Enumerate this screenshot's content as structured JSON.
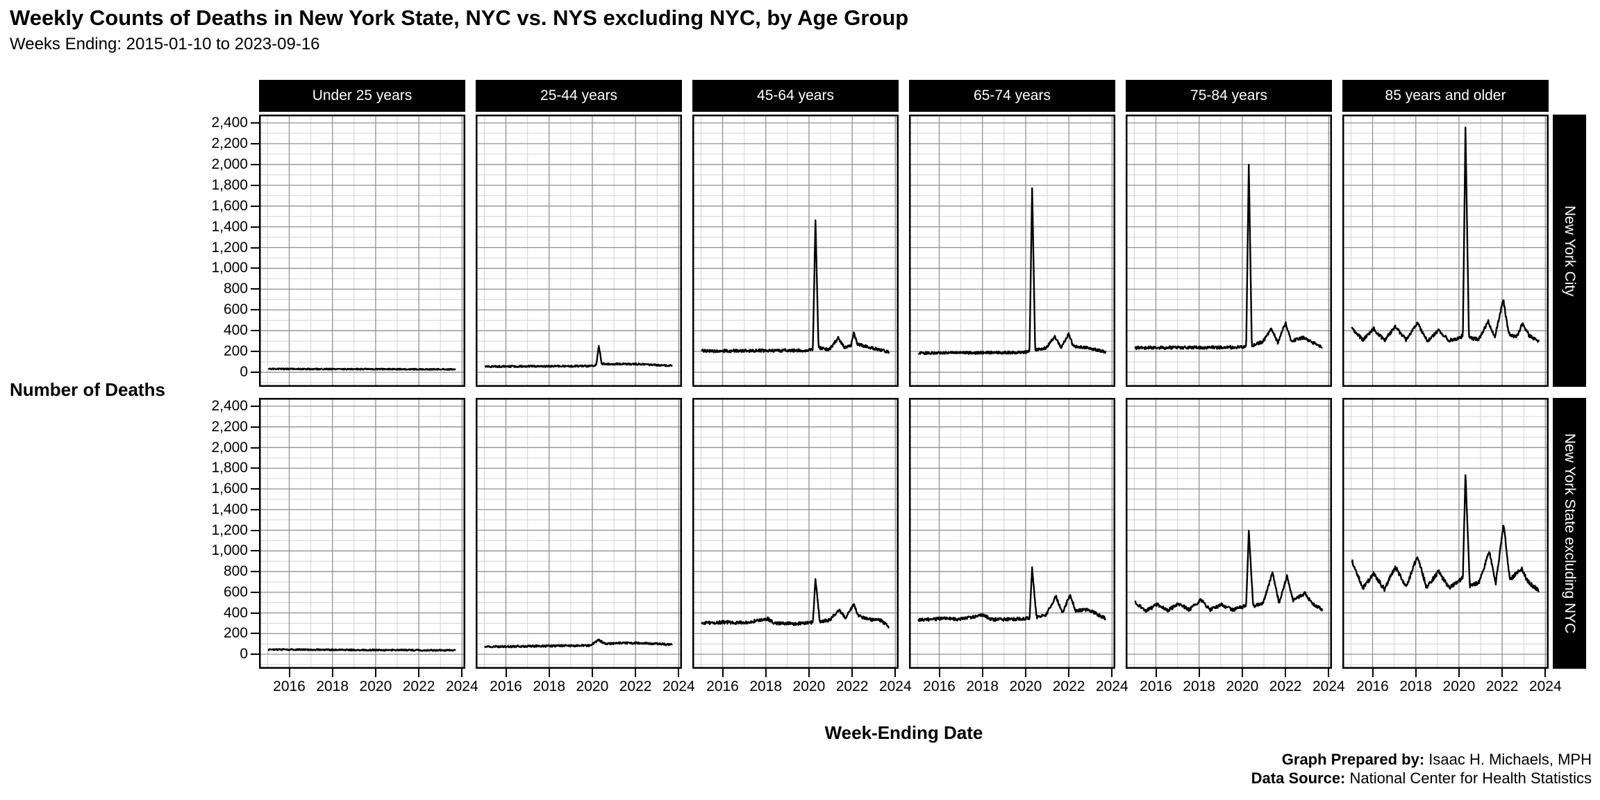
{
  "page": {
    "title": "Weekly Counts of Deaths in New York State, NYC vs. NYS excluding NYC, by Age Group",
    "subtitle": "Weeks Ending: 2015-01-10 to 2023-09-16",
    "y_axis_title": "Number of Deaths",
    "x_axis_title": "Week-Ending Date",
    "footer": {
      "prepared_by_label": "Graph Prepared by:",
      "prepared_by_value": " Isaac H. Michaels, MPH",
      "source_label": "Data Source:",
      "source_value": " National Center for Health Statistics"
    }
  },
  "chart_data": {
    "type": "line",
    "title": "Weekly Counts of Deaths in New York State, NYC vs. NYS excluding NYC, by Age Group",
    "subtitle": "Weeks Ending: 2015-01-10 to 2023-09-16",
    "xlabel": "Week-Ending Date",
    "ylabel": "Number of Deaths",
    "facet_columns": [
      "Under 25 years",
      "25-44 years",
      "45-64 years",
      "65-74 years",
      "75-84 years",
      "85 years and older"
    ],
    "facet_rows": [
      "New York City",
      "New York State excluding NYC"
    ],
    "x_domain": [
      2014.6,
      2024.15
    ],
    "y_domain": [
      -140,
      2480
    ],
    "x_range_weeks": [
      2015.03,
      2023.71
    ],
    "x_ticks": [
      {
        "value": 2016,
        "label": "2016"
      },
      {
        "value": 2018,
        "label": "2018"
      },
      {
        "value": 2020,
        "label": "2020"
      },
      {
        "value": 2022,
        "label": "2022"
      },
      {
        "value": 2024,
        "label": "2024"
      }
    ],
    "x_minor": [
      2015,
      2017,
      2019,
      2021,
      2023
    ],
    "y_ticks": [
      {
        "value": 0,
        "label": "0"
      },
      {
        "value": 200,
        "label": "200"
      },
      {
        "value": 400,
        "label": "400"
      },
      {
        "value": 600,
        "label": "600"
      },
      {
        "value": 800,
        "label": "800"
      },
      {
        "value": 1000,
        "label": "1,000"
      },
      {
        "value": 1200,
        "label": "1,200"
      },
      {
        "value": 1400,
        "label": "1,400"
      },
      {
        "value": 1600,
        "label": "1,600"
      },
      {
        "value": 1800,
        "label": "1,800"
      },
      {
        "value": 2000,
        "label": "2,000"
      },
      {
        "value": 2200,
        "label": "2,200"
      },
      {
        "value": 2400,
        "label": "2,400"
      }
    ],
    "y_minor": [
      -100,
      100,
      300,
      500,
      700,
      900,
      1100,
      1300,
      1500,
      1700,
      1900,
      2100,
      2300
    ],
    "grid": true,
    "legend": "none",
    "line_color": "#000000",
    "grid_major_color": "#909090",
    "grid_minor_color": "#d4d4d4",
    "strip_bg": "#000000",
    "strip_text_color": "#ffffff",
    "panels": [
      {
        "row": "New York City",
        "col": "Under 25 years",
        "noise": 6,
        "seed": 11,
        "keypoints": [
          [
            2015.03,
            32
          ],
          [
            2023.71,
            28
          ]
        ]
      },
      {
        "row": "New York City",
        "col": "25-44 years",
        "noise": 8,
        "seed": 23,
        "keypoints": [
          [
            2015.03,
            55
          ],
          [
            2019.9,
            60
          ],
          [
            2020.18,
            70
          ],
          [
            2020.3,
            255
          ],
          [
            2020.44,
            80
          ],
          [
            2021.2,
            80
          ],
          [
            2022.3,
            78
          ],
          [
            2023.71,
            62
          ]
        ]
      },
      {
        "row": "New York City",
        "col": "45-64 years",
        "noise": 14,
        "seed": 37,
        "keypoints": [
          [
            2015.03,
            205
          ],
          [
            2019.9,
            210
          ],
          [
            2020.18,
            220
          ],
          [
            2020.3,
            1470
          ],
          [
            2020.44,
            235
          ],
          [
            2020.95,
            220
          ],
          [
            2021.35,
            330
          ],
          [
            2021.65,
            240
          ],
          [
            2021.95,
            255
          ],
          [
            2022.07,
            380
          ],
          [
            2022.25,
            270
          ],
          [
            2022.9,
            235
          ],
          [
            2023.71,
            195
          ]
        ]
      },
      {
        "row": "New York City",
        "col": "65-74 years",
        "noise": 12,
        "seed": 41,
        "keypoints": [
          [
            2015.03,
            185
          ],
          [
            2019.9,
            190
          ],
          [
            2020.18,
            200
          ],
          [
            2020.3,
            1790
          ],
          [
            2020.44,
            215
          ],
          [
            2020.95,
            235
          ],
          [
            2021.35,
            345
          ],
          [
            2021.65,
            235
          ],
          [
            2022.0,
            375
          ],
          [
            2022.2,
            250
          ],
          [
            2022.9,
            235
          ],
          [
            2023.71,
            195
          ]
        ]
      },
      {
        "row": "New York City",
        "col": "75-84 years",
        "noise": 14,
        "seed": 53,
        "keypoints": [
          [
            2015.03,
            235
          ],
          [
            2019.9,
            240
          ],
          [
            2020.18,
            250
          ],
          [
            2020.3,
            2000
          ],
          [
            2020.44,
            255
          ],
          [
            2020.95,
            295
          ],
          [
            2021.35,
            420
          ],
          [
            2021.65,
            285
          ],
          [
            2022.0,
            480
          ],
          [
            2022.25,
            300
          ],
          [
            2022.85,
            335
          ],
          [
            2023.2,
            290
          ],
          [
            2023.71,
            245
          ]
        ]
      },
      {
        "row": "New York City",
        "col": "85 years and older",
        "noise": 17,
        "seed": 67,
        "keypoints": [
          [
            2015.03,
            430
          ],
          [
            2015.55,
            310
          ],
          [
            2016.05,
            420
          ],
          [
            2016.55,
            305
          ],
          [
            2017.05,
            440
          ],
          [
            2017.55,
            310
          ],
          [
            2018.08,
            470
          ],
          [
            2018.55,
            300
          ],
          [
            2019.05,
            400
          ],
          [
            2019.55,
            305
          ],
          [
            2020.05,
            330
          ],
          [
            2020.18,
            360
          ],
          [
            2020.3,
            2360
          ],
          [
            2020.46,
            330
          ],
          [
            2020.9,
            315
          ],
          [
            2021.35,
            490
          ],
          [
            2021.65,
            330
          ],
          [
            2022.05,
            700
          ],
          [
            2022.3,
            370
          ],
          [
            2022.65,
            335
          ],
          [
            2022.95,
            470
          ],
          [
            2023.25,
            350
          ],
          [
            2023.71,
            295
          ]
        ]
      },
      {
        "row": "New York State excluding NYC",
        "col": "Under 25 years",
        "noise": 7,
        "seed": 71,
        "keypoints": [
          [
            2015.03,
            46
          ],
          [
            2023.71,
            38
          ]
        ]
      },
      {
        "row": "New York State excluding NYC",
        "col": "25-44 years",
        "noise": 9,
        "seed": 83,
        "keypoints": [
          [
            2015.03,
            72
          ],
          [
            2019.9,
            85
          ],
          [
            2020.3,
            140
          ],
          [
            2020.6,
            100
          ],
          [
            2021.4,
            110
          ],
          [
            2022.4,
            108
          ],
          [
            2023.71,
            92
          ]
        ]
      },
      {
        "row": "New York State excluding NYC",
        "col": "45-64 years",
        "noise": 15,
        "seed": 89,
        "keypoints": [
          [
            2015.03,
            300
          ],
          [
            2016.05,
            310
          ],
          [
            2017.05,
            305
          ],
          [
            2018.08,
            345
          ],
          [
            2018.4,
            300
          ],
          [
            2019.5,
            295
          ],
          [
            2020.18,
            310
          ],
          [
            2020.3,
            720
          ],
          [
            2020.5,
            320
          ],
          [
            2020.95,
            330
          ],
          [
            2021.4,
            430
          ],
          [
            2021.7,
            350
          ],
          [
            2022.07,
            480
          ],
          [
            2022.3,
            370
          ],
          [
            2022.9,
            335
          ],
          [
            2023.3,
            330
          ],
          [
            2023.71,
            265
          ]
        ]
      },
      {
        "row": "New York State excluding NYC",
        "col": "65-74 years",
        "noise": 15,
        "seed": 97,
        "keypoints": [
          [
            2015.03,
            330
          ],
          [
            2016.05,
            345
          ],
          [
            2017.05,
            340
          ],
          [
            2018.08,
            380
          ],
          [
            2018.4,
            335
          ],
          [
            2019.5,
            340
          ],
          [
            2020.18,
            350
          ],
          [
            2020.3,
            830
          ],
          [
            2020.5,
            360
          ],
          [
            2020.95,
            380
          ],
          [
            2021.4,
            560
          ],
          [
            2021.7,
            400
          ],
          [
            2022.07,
            580
          ],
          [
            2022.3,
            420
          ],
          [
            2022.9,
            430
          ],
          [
            2023.2,
            400
          ],
          [
            2023.71,
            345
          ]
        ]
      },
      {
        "row": "New York State excluding NYC",
        "col": "75-84 years",
        "noise": 16,
        "seed": 101,
        "keypoints": [
          [
            2015.05,
            500
          ],
          [
            2015.55,
            420
          ],
          [
            2016.05,
            480
          ],
          [
            2016.55,
            425
          ],
          [
            2017.05,
            490
          ],
          [
            2017.55,
            430
          ],
          [
            2018.08,
            530
          ],
          [
            2018.5,
            430
          ],
          [
            2019.05,
            480
          ],
          [
            2019.55,
            430
          ],
          [
            2020.05,
            460
          ],
          [
            2020.18,
            470
          ],
          [
            2020.3,
            1200
          ],
          [
            2020.5,
            465
          ],
          [
            2020.95,
            490
          ],
          [
            2021.4,
            790
          ],
          [
            2021.7,
            500
          ],
          [
            2022.07,
            760
          ],
          [
            2022.35,
            520
          ],
          [
            2022.9,
            590
          ],
          [
            2023.2,
            500
          ],
          [
            2023.71,
            430
          ]
        ]
      },
      {
        "row": "New York State excluding NYC",
        "col": "85 years and older",
        "noise": 20,
        "seed": 113,
        "keypoints": [
          [
            2015.05,
            900
          ],
          [
            2015.55,
            640
          ],
          [
            2016.05,
            780
          ],
          [
            2016.55,
            630
          ],
          [
            2017.05,
            850
          ],
          [
            2017.55,
            650
          ],
          [
            2018.08,
            950
          ],
          [
            2018.5,
            645
          ],
          [
            2019.05,
            800
          ],
          [
            2019.55,
            640
          ],
          [
            2020.05,
            720
          ],
          [
            2020.18,
            740
          ],
          [
            2020.3,
            1750
          ],
          [
            2020.5,
            660
          ],
          [
            2020.95,
            700
          ],
          [
            2021.4,
            1000
          ],
          [
            2021.7,
            680
          ],
          [
            2022.07,
            1260
          ],
          [
            2022.35,
            720
          ],
          [
            2022.9,
            830
          ],
          [
            2023.2,
            700
          ],
          [
            2023.71,
            615
          ]
        ]
      }
    ]
  }
}
